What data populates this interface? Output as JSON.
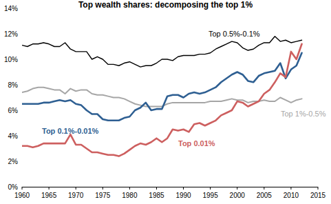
{
  "chart_data": {
    "type": "line",
    "title": "Top wealth shares: decomposing the top 1%",
    "x": [
      1960,
      1961,
      1962,
      1963,
      1964,
      1965,
      1966,
      1967,
      1968,
      1969,
      1970,
      1971,
      1972,
      1973,
      1974,
      1975,
      1976,
      1977,
      1978,
      1979,
      1980,
      1981,
      1982,
      1983,
      1984,
      1985,
      1986,
      1987,
      1988,
      1989,
      1990,
      1991,
      1992,
      1993,
      1994,
      1995,
      1996,
      1997,
      1998,
      1999,
      2000,
      2001,
      2002,
      2003,
      2004,
      2005,
      2006,
      2007,
      2008,
      2009,
      2010,
      2011,
      2012
    ],
    "series": [
      {
        "name": "Top 0.5%-0.1%",
        "color": "#000000",
        "values": [
          11.1,
          11.0,
          11.2,
          11.2,
          11.3,
          11.2,
          11.0,
          11.0,
          11.3,
          10.8,
          10.6,
          10.6,
          10.6,
          10.0,
          10.2,
          10.0,
          9.6,
          9.6,
          9.5,
          9.7,
          9.8,
          9.6,
          9.4,
          9.5,
          9.5,
          9.7,
          10.0,
          10.0,
          9.9,
          10.2,
          10.3,
          10.3,
          10.3,
          10.4,
          10.4,
          10.5,
          10.8,
          11.0,
          11.2,
          11.4,
          11.3,
          10.9,
          10.7,
          10.8,
          11.1,
          11.3,
          11.3,
          11.8,
          11.4,
          11.5,
          11.3,
          11.4,
          11.5
        ]
      },
      {
        "name": "Top 1%-0.5%",
        "color": "#a6a6a6",
        "values": [
          7.4,
          7.5,
          7.7,
          7.8,
          7.8,
          7.7,
          7.6,
          7.6,
          7.3,
          7.7,
          7.5,
          7.6,
          7.6,
          7.3,
          7.2,
          7.2,
          7.1,
          7.0,
          7.0,
          6.9,
          6.7,
          6.5,
          6.4,
          6.3,
          6.3,
          6.3,
          6.3,
          6.5,
          6.6,
          6.6,
          6.6,
          6.6,
          6.6,
          6.6,
          6.6,
          6.7,
          6.7,
          6.7,
          6.8,
          6.9,
          6.8,
          6.8,
          6.6,
          6.7,
          6.7,
          6.8,
          6.7,
          6.7,
          7.0,
          6.8,
          6.6,
          6.8,
          6.9
        ]
      },
      {
        "name": "Top 0.1%-0.01%",
        "color": "#2e5f92",
        "values": [
          6.5,
          6.5,
          6.5,
          6.5,
          6.6,
          6.6,
          6.7,
          6.8,
          6.7,
          6.8,
          6.5,
          6.4,
          6.0,
          5.7,
          5.7,
          5.3,
          5.2,
          5.2,
          5.2,
          5.4,
          5.5,
          6.0,
          6.2,
          6.6,
          6.0,
          6.1,
          6.1,
          7.1,
          7.2,
          7.2,
          7.0,
          7.3,
          7.4,
          7.3,
          7.4,
          7.6,
          7.8,
          8.2,
          8.5,
          8.8,
          9.0,
          8.8,
          8.3,
          8.2,
          8.7,
          8.9,
          9.0,
          9.1,
          9.7,
          8.5,
          9.2,
          9.5,
          10.5
        ]
      },
      {
        "name": "Top 0.01%",
        "color": "#cd5f5f",
        "values": [
          3.2,
          3.2,
          3.1,
          3.2,
          3.4,
          3.4,
          3.4,
          3.4,
          3.4,
          4.1,
          3.3,
          3.3,
          3.0,
          2.7,
          2.7,
          2.6,
          2.5,
          2.5,
          2.4,
          2.6,
          2.9,
          3.2,
          3.4,
          3.3,
          3.5,
          3.8,
          3.5,
          3.8,
          4.5,
          4.4,
          4.5,
          4.3,
          4.9,
          5.0,
          4.8,
          5.0,
          5.2,
          5.6,
          5.8,
          6.0,
          6.7,
          6.6,
          6.3,
          6.5,
          6.7,
          7.3,
          7.6,
          8.2,
          8.9,
          8.6,
          10.6,
          10.0,
          11.2
        ]
      }
    ],
    "xlim": [
      1960,
      2015
    ],
    "xticks": [
      1960,
      1965,
      1970,
      1975,
      1980,
      1985,
      1990,
      1995,
      2000,
      2005,
      2010,
      2015
    ],
    "ylim": [
      0,
      14
    ],
    "yticks": [
      {
        "value": 0,
        "label": "0%"
      },
      {
        "value": 2,
        "label": "2%"
      },
      {
        "value": 4,
        "label": "4%"
      },
      {
        "value": 6,
        "label": "6%"
      },
      {
        "value": 8,
        "label": "8%"
      },
      {
        "value": 10,
        "label": "10%"
      },
      {
        "value": 12,
        "label": "12%"
      },
      {
        "value": 14,
        "label": "14%"
      }
    ],
    "grid": false
  }
}
